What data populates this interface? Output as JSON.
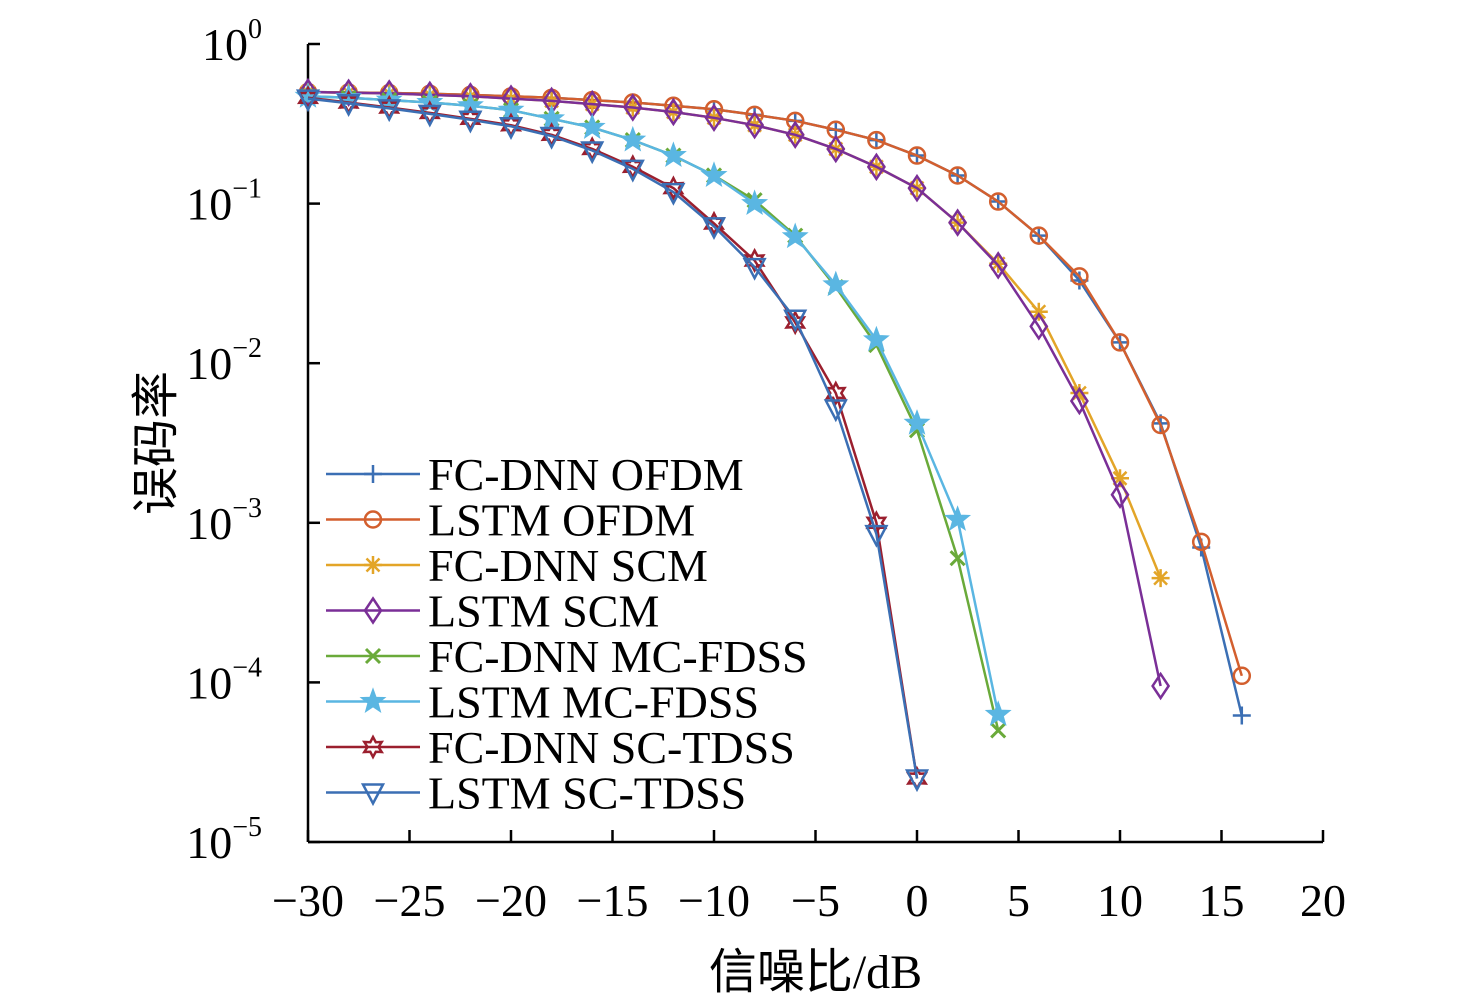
{
  "chart_data": {
    "type": "line",
    "xlabel": "信噪比/dB",
    "ylabel": "误码率",
    "x_scale": "linear",
    "y_scale": "log",
    "xlim": [
      -30,
      20
    ],
    "ylim": [
      1e-05,
      1
    ],
    "xticks": [
      "−30",
      "−25",
      "−20",
      "−15",
      "−10",
      "−5",
      "0",
      "5",
      "10",
      "15",
      "20"
    ],
    "yticks": [
      {
        "base": "10",
        "exp": "0"
      },
      {
        "base": "10",
        "exp": "−1"
      },
      {
        "base": "10",
        "exp": "−2"
      },
      {
        "base": "10",
        "exp": "−3"
      },
      {
        "base": "10",
        "exp": "−4"
      },
      {
        "base": "10",
        "exp": "−5"
      }
    ],
    "grid": false,
    "legend_position": "lower-left",
    "series": [
      {
        "name": "FC-DNN OFDM",
        "color": "#3b6fb4",
        "marker": "plus",
        "x": [
          -30,
          -28,
          -26,
          -24,
          -22,
          -20,
          -18,
          -16,
          -14,
          -12,
          -10,
          -8,
          -6,
          -4,
          -2,
          0,
          2,
          4,
          6,
          8,
          10,
          12,
          14,
          16
        ],
        "y": [
          0.5,
          0.497,
          0.493,
          0.488,
          0.48,
          0.47,
          0.46,
          0.445,
          0.43,
          0.41,
          0.39,
          0.36,
          0.33,
          0.29,
          0.25,
          0.2,
          0.15,
          0.103,
          0.063,
          0.033,
          0.0135,
          0.0042,
          0.0007,
          6.2e-05
        ]
      },
      {
        "name": "LSTM OFDM",
        "color": "#d35f2e",
        "marker": "circle",
        "x": [
          -30,
          -28,
          -26,
          -24,
          -22,
          -20,
          -18,
          -16,
          -14,
          -12,
          -10,
          -8,
          -6,
          -4,
          -2,
          0,
          2,
          4,
          6,
          8,
          10,
          12,
          14,
          16
        ],
        "y": [
          0.5,
          0.497,
          0.493,
          0.488,
          0.48,
          0.47,
          0.46,
          0.445,
          0.43,
          0.41,
          0.39,
          0.36,
          0.33,
          0.29,
          0.25,
          0.2,
          0.15,
          0.103,
          0.063,
          0.035,
          0.0135,
          0.0041,
          0.00076,
          0.00011
        ]
      },
      {
        "name": "FC-DNN SCM",
        "color": "#e3a528",
        "marker": "asterisk",
        "x": [
          -30,
          -28,
          -26,
          -24,
          -22,
          -20,
          -18,
          -16,
          -14,
          -12,
          -10,
          -8,
          -6,
          -4,
          -2,
          0,
          2,
          4,
          6,
          8,
          10,
          12
        ],
        "y": [
          0.5,
          0.495,
          0.49,
          0.48,
          0.47,
          0.455,
          0.44,
          0.42,
          0.4,
          0.375,
          0.345,
          0.31,
          0.27,
          0.22,
          0.17,
          0.125,
          0.076,
          0.042,
          0.021,
          0.0065,
          0.0019,
          0.00045
        ]
      },
      {
        "name": "LSTM SCM",
        "color": "#7a2f97",
        "marker": "diamond",
        "x": [
          -30,
          -28,
          -26,
          -24,
          -22,
          -20,
          -18,
          -16,
          -14,
          -12,
          -10,
          -8,
          -6,
          -4,
          -2,
          0,
          2,
          4,
          6,
          8,
          10,
          12
        ],
        "y": [
          0.5,
          0.495,
          0.49,
          0.48,
          0.47,
          0.455,
          0.44,
          0.42,
          0.4,
          0.375,
          0.345,
          0.31,
          0.27,
          0.22,
          0.17,
          0.125,
          0.076,
          0.041,
          0.017,
          0.0058,
          0.0015,
          9.5e-05
        ]
      },
      {
        "name": "FC-DNN MC-FDSS",
        "color": "#6aaa3a",
        "marker": "cross",
        "x": [
          -30,
          -28,
          -26,
          -24,
          -22,
          -20,
          -18,
          -16,
          -14,
          -12,
          -10,
          -8,
          -6,
          -4,
          -2,
          0,
          2,
          4
        ],
        "y": [
          0.47,
          0.46,
          0.445,
          0.43,
          0.41,
          0.385,
          0.34,
          0.3,
          0.25,
          0.2,
          0.15,
          0.105,
          0.063,
          0.03,
          0.013,
          0.0038,
          0.0006,
          5e-05
        ]
      },
      {
        "name": "LSTM MC-FDSS",
        "color": "#5ab6e2",
        "marker": "star",
        "x": [
          -30,
          -28,
          -26,
          -24,
          -22,
          -20,
          -18,
          -16,
          -14,
          -12,
          -10,
          -8,
          -6,
          -4,
          -2,
          0,
          2,
          4
        ],
        "y": [
          0.47,
          0.46,
          0.445,
          0.43,
          0.41,
          0.385,
          0.34,
          0.3,
          0.25,
          0.2,
          0.15,
          0.1,
          0.062,
          0.031,
          0.014,
          0.0042,
          0.00105,
          6.3e-05
        ]
      },
      {
        "name": "FC-DNN SC-TDSS",
        "color": "#9b1f2e",
        "marker": "hexagram",
        "x": [
          -30,
          -28,
          -26,
          -24,
          -22,
          -20,
          -18,
          -16,
          -14,
          -12,
          -10,
          -8,
          -6,
          -4,
          -2,
          0
        ],
        "y": [
          0.46,
          0.43,
          0.4,
          0.37,
          0.34,
          0.31,
          0.27,
          0.22,
          0.17,
          0.125,
          0.075,
          0.044,
          0.018,
          0.0065,
          0.001,
          2.5e-05
        ]
      },
      {
        "name": "LSTM SC-TDSS",
        "color": "#3b6fb4",
        "marker": "triangle-down",
        "x": [
          -30,
          -28,
          -26,
          -24,
          -22,
          -20,
          -18,
          -16,
          -14,
          -12,
          -10,
          -8,
          -6,
          -4,
          -2,
          0
        ],
        "y": [
          0.455,
          0.425,
          0.395,
          0.365,
          0.335,
          0.305,
          0.265,
          0.215,
          0.165,
          0.118,
          0.072,
          0.04,
          0.019,
          0.0052,
          0.00085,
          2.5e-05
        ]
      }
    ]
  }
}
